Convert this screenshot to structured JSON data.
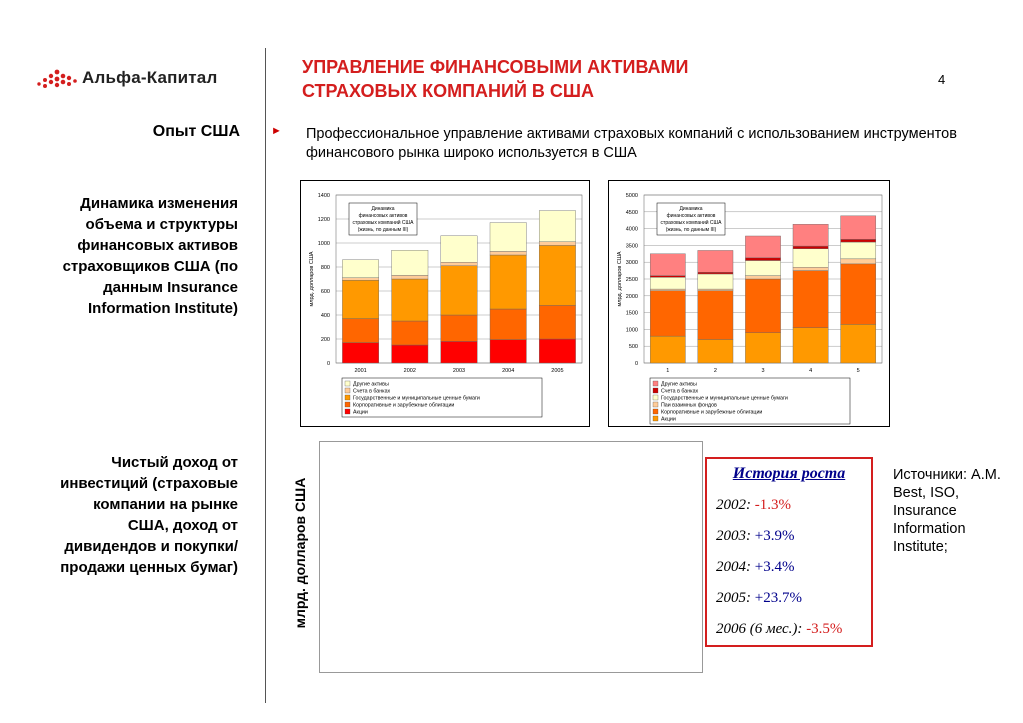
{
  "header": {
    "logo_text": "Альфа-Капитал",
    "title_line1": "УПРАВЛЕНИЕ ФИНАНСОВЫМИ АКТИВАМИ",
    "title_line2": "СТРАХОВЫХ КОМПАНИЙ В США",
    "page_number": "4"
  },
  "section_label": "Опыт США",
  "intro_text": "Профессиональное управление активами страховых компаний с использованием инструментов финансового рынка широко используется в США",
  "left_text_1": "Динамика изменения объема и структуры финансовых активов страховщиков США (по данным Insurance Information Institute)",
  "left_text_2": "Чистый доход от инвестиций (страховые компании на рынке США, доход от дивидендов и покупки/продажи ценных бумаг)",
  "bottom_chart": {
    "ylabel": "млрд. долларов США"
  },
  "history": {
    "title": "История роста",
    "rows": [
      {
        "label": "2002:",
        "value": "-1.3%",
        "sign": "neg"
      },
      {
        "label": "2003:",
        "value": "+3.9%",
        "sign": "pos"
      },
      {
        "label": "2004:",
        "value": "+3.4%",
        "sign": "pos"
      },
      {
        "label": "2005:",
        "value": "+23.7%",
        "sign": "pos"
      },
      {
        "label": "2006 (6 мес.):",
        "value": "-3.5%",
        "sign": "neg"
      }
    ]
  },
  "sources": "Источники: A.M. Best, ISO, Insurance Information Institute;",
  "colors": {
    "accent": "#d41e1e",
    "blue": "#00008b"
  },
  "chart_data": [
    {
      "type": "bar",
      "stacked": true,
      "ylabel": "млрд. долларов США",
      "annotation": [
        "Динамика",
        "финансовых активов",
        "страховых компаний США",
        "(жизнь, по данным III)"
      ],
      "categories": [
        "2001",
        "2002",
        "2003",
        "2004",
        "2005"
      ],
      "ylim": [
        0,
        1400
      ],
      "yticks": [
        0,
        200,
        400,
        600,
        800,
        1000,
        1200,
        1400
      ],
      "grid": true,
      "legend_position": "bottom",
      "series": [
        {
          "name": "Акции",
          "color": "#ff0000",
          "values": [
            170,
            150,
            180,
            195,
            200
          ]
        },
        {
          "name": "Корпоративные и зарубежные облигации",
          "color": "#ff6600",
          "values": [
            200,
            200,
            220,
            255,
            280
          ]
        },
        {
          "name": "Государственные и муниципальные ценные бумаги",
          "color": "#ff9900",
          "values": [
            320,
            350,
            410,
            450,
            500
          ]
        },
        {
          "name": "Счета в банках",
          "color": "#ffcc99",
          "values": [
            20,
            30,
            30,
            30,
            30
          ]
        },
        {
          "name": "Другие активы",
          "color": "#ffffcc",
          "values": [
            150,
            210,
            220,
            240,
            260
          ]
        }
      ]
    },
    {
      "type": "bar",
      "stacked": true,
      "ylabel": "млрд. долларов США",
      "annotation": [
        "Динамика",
        "финансовых активов",
        "страховых компаний США",
        "(жизнь, по данным III)"
      ],
      "categories": [
        "1",
        "2",
        "3",
        "4",
        "5"
      ],
      "ylim": [
        0,
        5000
      ],
      "yticks": [
        0,
        500,
        1000,
        1500,
        2000,
        2500,
        3000,
        3500,
        4000,
        4500,
        5000
      ],
      "grid": true,
      "legend_position": "bottom",
      "series": [
        {
          "name": "Акции",
          "color": "#ff9900",
          "values": [
            800,
            700,
            900,
            1050,
            1150
          ]
        },
        {
          "name": "Корпоративные и зарубежные облигации",
          "color": "#ff6600",
          "values": [
            1350,
            1450,
            1600,
            1700,
            1800
          ]
        },
        {
          "name": "Паи взаимных фондов",
          "color": "#ffcc99",
          "values": [
            50,
            50,
            100,
            100,
            150
          ]
        },
        {
          "name": "Государственные и муниципальные ценные бумаги",
          "color": "#ffffcc",
          "values": [
            350,
            450,
            450,
            550,
            500
          ]
        },
        {
          "name": "Счета в банках",
          "color": "#cc0000",
          "values": [
            50,
            50,
            80,
            80,
            80
          ]
        },
        {
          "name": "Другие активы",
          "color": "#ff8080",
          "values": [
            650,
            650,
            650,
            650,
            700
          ]
        }
      ]
    }
  ]
}
